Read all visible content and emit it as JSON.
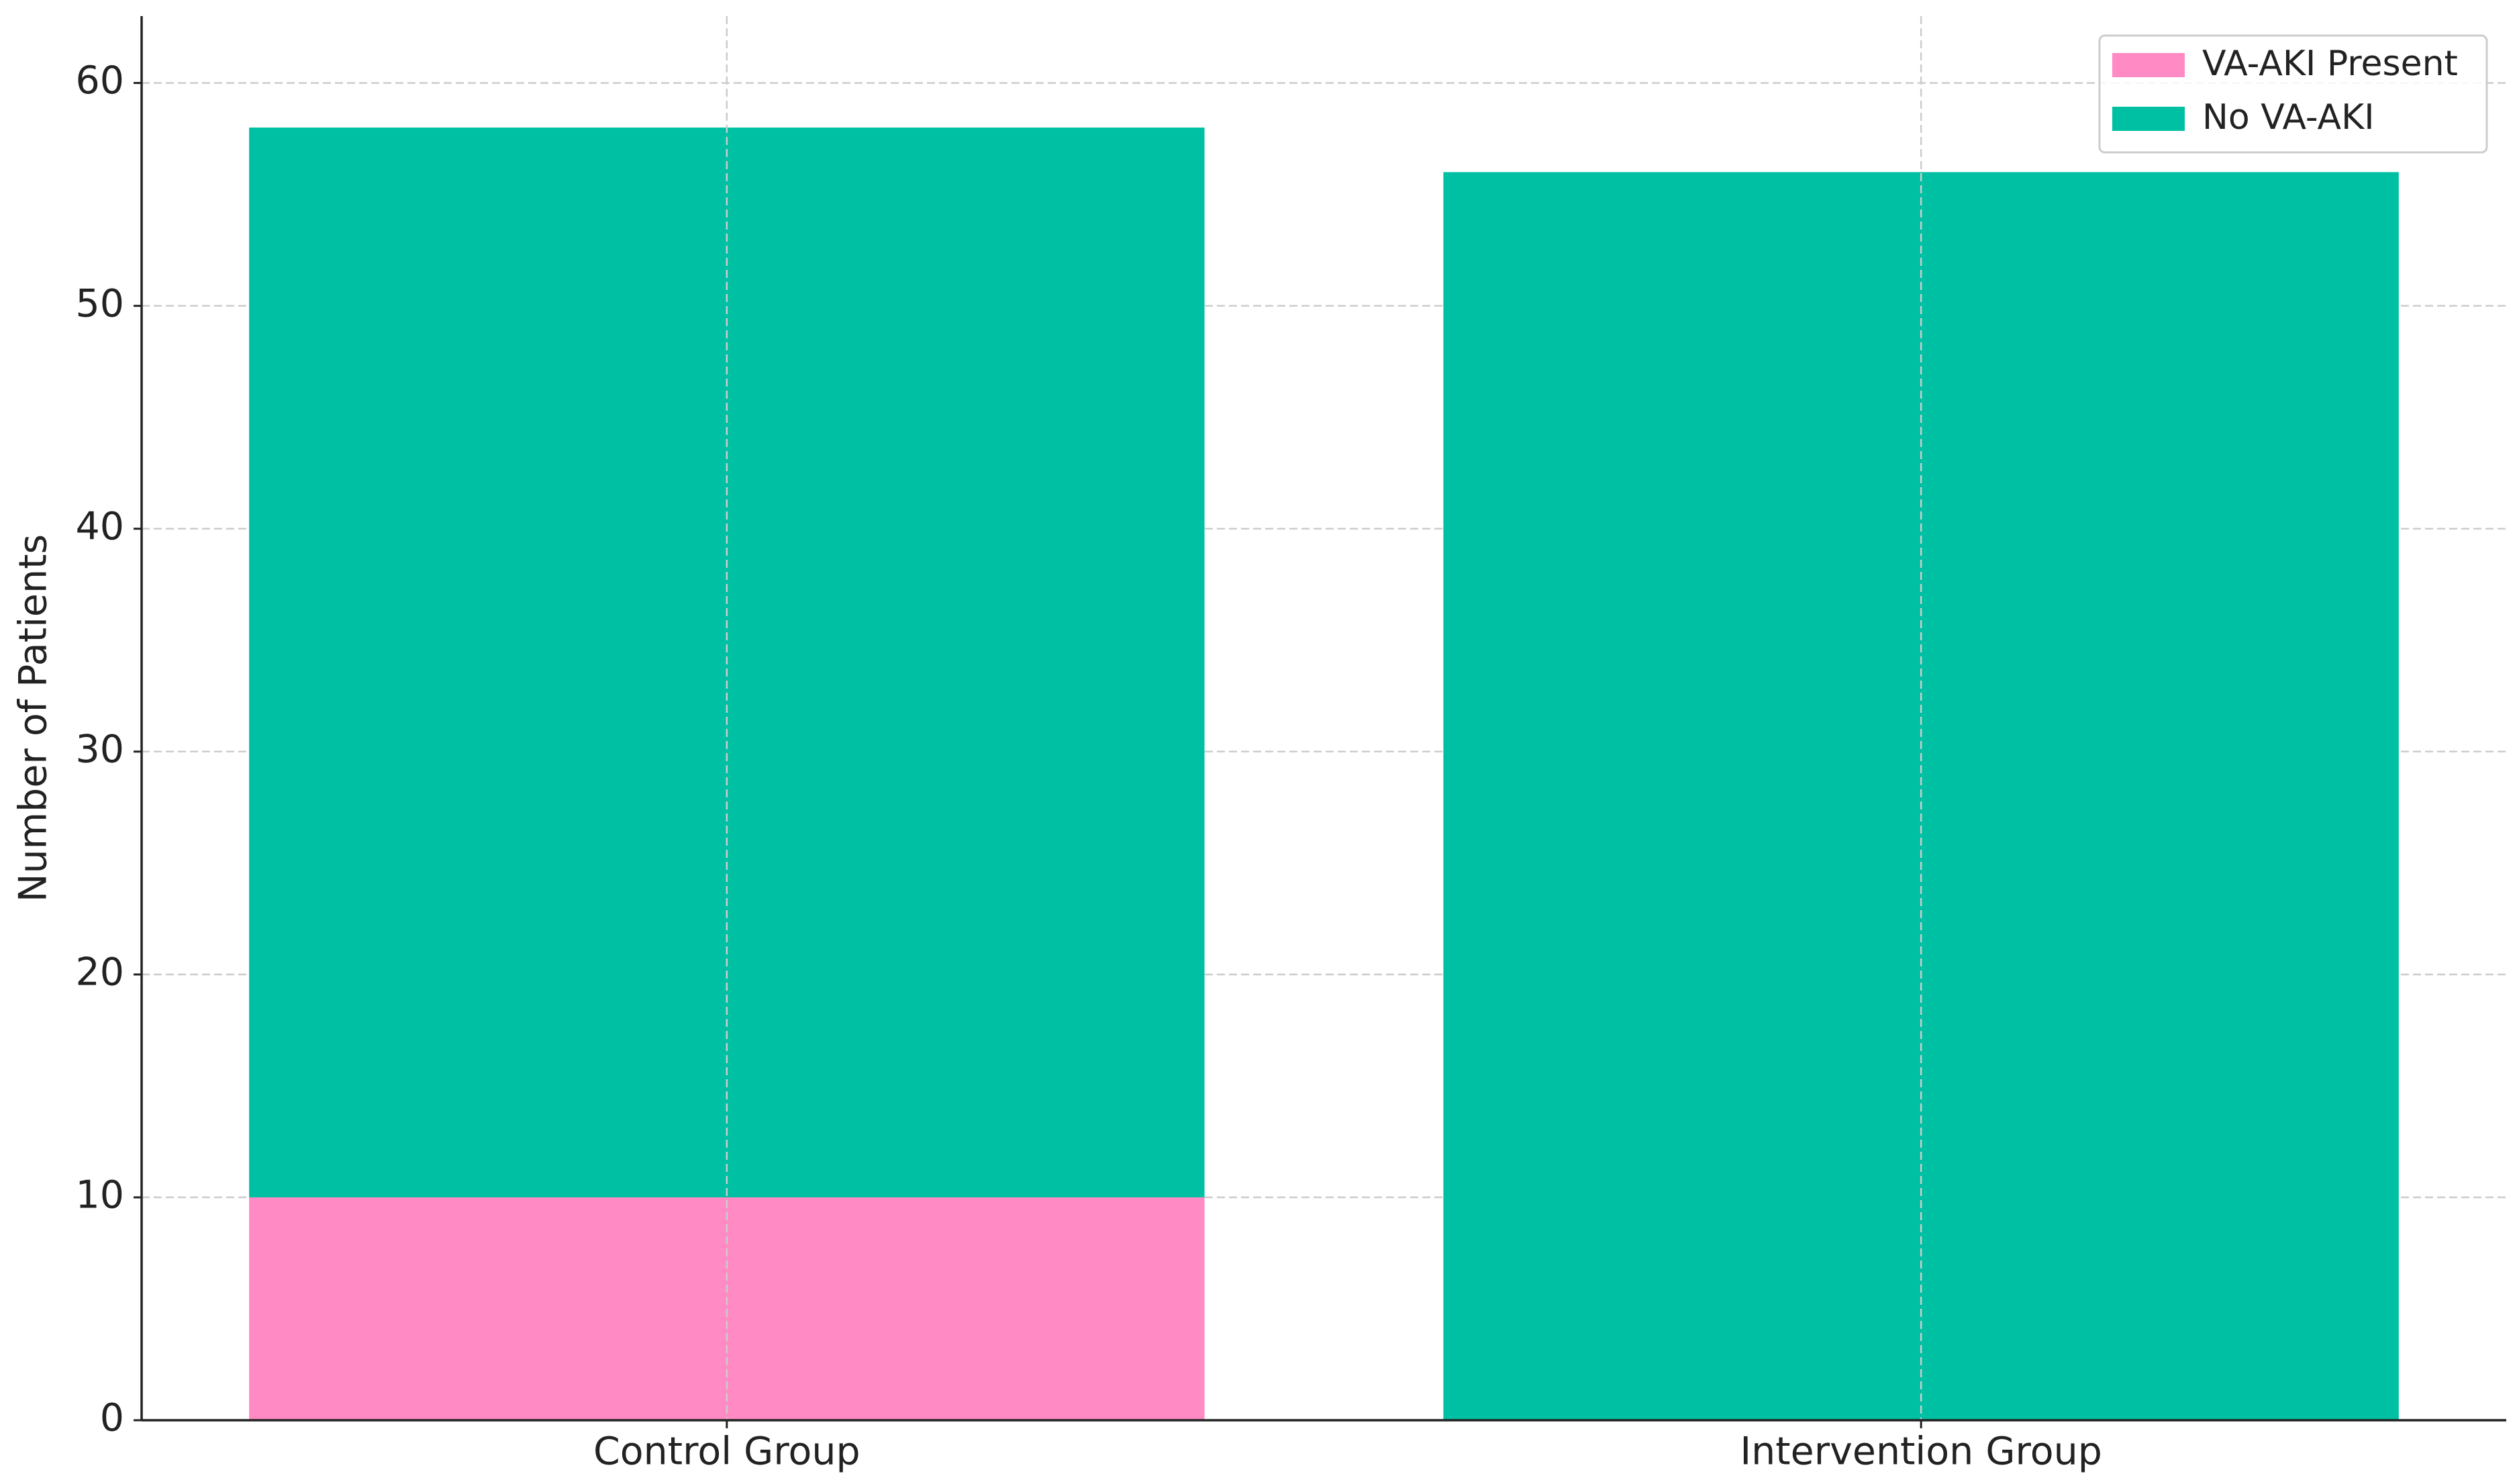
{
  "chart_data": {
    "type": "stacked_bar",
    "y_label": "Number of Patients",
    "categories": [
      "Control Group",
      "Intervention Group"
    ],
    "series": [
      {
        "name": "VA-AKI Present",
        "color": "#ff8ac4",
        "values": [
          10,
          0
        ]
      },
      {
        "name": "No VA-AKI",
        "color": "#00c0a3",
        "values": [
          48,
          56
        ]
      }
    ],
    "ylim": [
      0,
      63
    ],
    "yticks": [
      0,
      10,
      20,
      30,
      40,
      50,
      60
    ],
    "grid": true,
    "legend": "upper right"
  }
}
